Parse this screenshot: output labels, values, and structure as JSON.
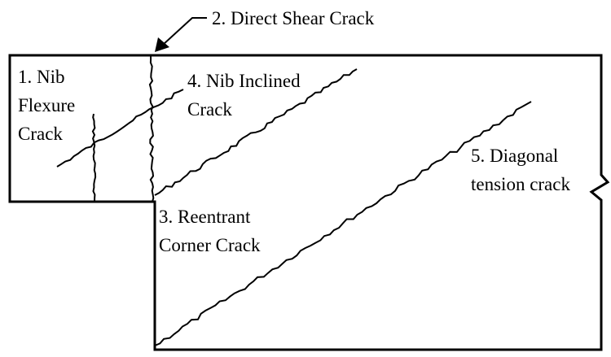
{
  "labels": [
    {
      "lines": [
        "2. Direct Shear Crack"
      ]
    },
    {
      "lines": [
        "1. Nib",
        "Flexure",
        "Crack"
      ]
    },
    {
      "lines": [
        "4. Nib Inclined",
        "Crack"
      ]
    },
    {
      "lines": [
        "5. Diagonal",
        "tension crack"
      ]
    },
    {
      "lines": [
        "3. Reentrant",
        "Corner Crack"
      ]
    }
  ]
}
